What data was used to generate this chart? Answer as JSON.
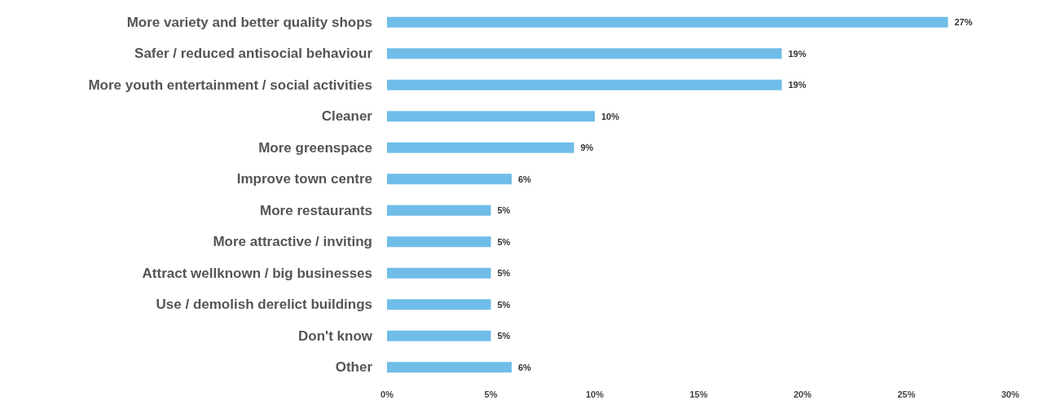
{
  "chart_data": {
    "type": "bar",
    "orientation": "horizontal",
    "categories": [
      "More variety and better quality shops",
      "Safer / reduced antisocial behaviour",
      "More youth entertainment / social activities",
      "Cleaner",
      "More greenspace",
      "Improve town centre",
      "More restaurants",
      "More attractive / inviting",
      "Attract wellknown / big businesses",
      "Use / demolish derelict buildings",
      "Don't know",
      "Other"
    ],
    "values": [
      27,
      19,
      19,
      10,
      9,
      6,
      5,
      5,
      5,
      5,
      5,
      6
    ],
    "value_labels": [
      "27%",
      "19%",
      "19%",
      "10%",
      "9%",
      "6%",
      "5%",
      "5%",
      "5%",
      "5%",
      "5%",
      "6%"
    ],
    "color": "#6fbde8",
    "xlim": [
      0,
      30
    ],
    "xticks": [
      {
        "value": 0,
        "label": "0%"
      },
      {
        "value": 5,
        "label": "5%"
      },
      {
        "value": 10,
        "label": "10%"
      },
      {
        "value": 15,
        "label": "15%"
      },
      {
        "value": 20,
        "label": "20%"
      },
      {
        "value": 25,
        "label": "25%"
      },
      {
        "value": 30,
        "label": "30%"
      }
    ],
    "grid": false
  }
}
